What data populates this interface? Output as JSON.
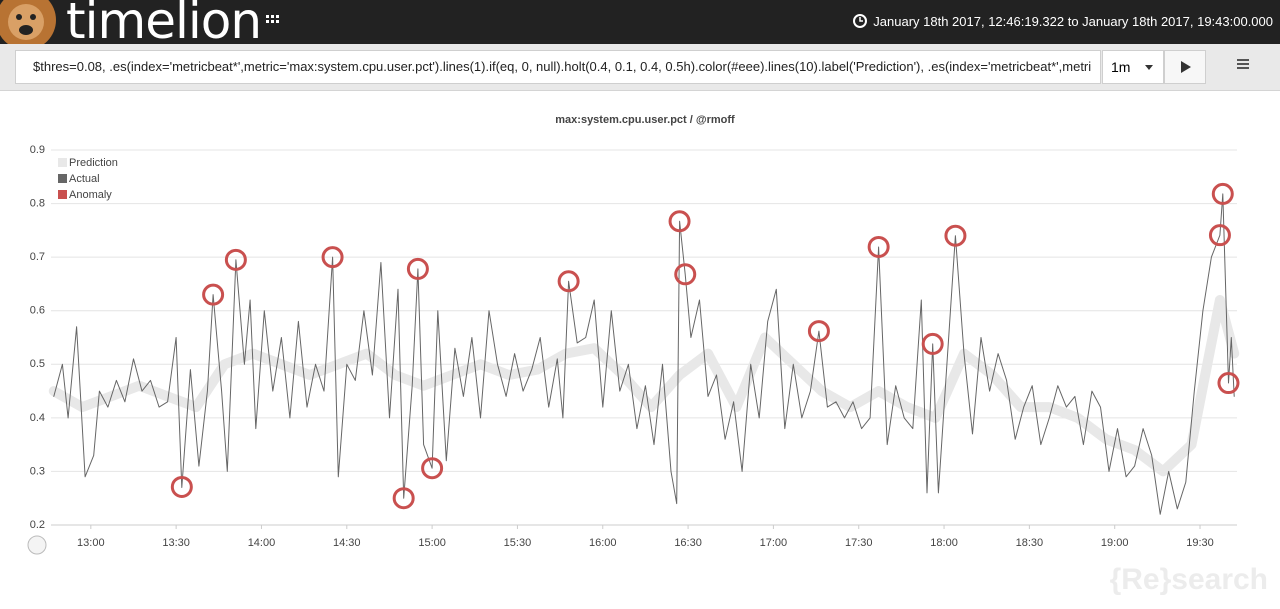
{
  "header": {
    "logo": "timelion",
    "time_range": "January 18th 2017, 12:46:19.322 to January 18th 2017, 19:43:00.000"
  },
  "query": {
    "expression": "$thres=0.08, .es(index='metricbeat*',metric='max:system.cpu.user.pct').lines(1).if(eq, 0, null).holt(0.4, 0.1, 0.4, 0.5h).color(#eee).lines(10).label('Prediction'), .es(index='metricbeat*',metri",
    "interval": "1m"
  },
  "watermark": "{Re}search",
  "chart_data": {
    "type": "line",
    "title": "max:system.cpu.user.pct / @rmoff",
    "xlim": [
      "12:46",
      "19:43"
    ],
    "xticks": [
      "13:00",
      "13:30",
      "14:00",
      "14:30",
      "15:00",
      "15:30",
      "16:00",
      "16:30",
      "17:00",
      "17:30",
      "18:00",
      "18:30",
      "19:00",
      "19:30"
    ],
    "ylim": [
      0.2,
      0.9
    ],
    "yticks": [
      0.2,
      0.3,
      0.4,
      0.5,
      0.6,
      0.7,
      0.8,
      0.9
    ],
    "grid": true,
    "legend": "top-left",
    "series": [
      {
        "name": "Prediction",
        "color": "#e8e8e8",
        "style": "thick",
        "x": [
          "12:47",
          "12:57",
          "13:07",
          "13:17",
          "13:27",
          "13:37",
          "13:47",
          "13:57",
          "14:07",
          "14:17",
          "14:27",
          "14:37",
          "14:47",
          "14:57",
          "15:07",
          "15:17",
          "15:27",
          "15:37",
          "15:47",
          "15:57",
          "16:07",
          "16:17",
          "16:27",
          "16:37",
          "16:47",
          "16:57",
          "17:07",
          "17:17",
          "17:27",
          "17:37",
          "17:47",
          "17:57",
          "18:07",
          "18:17",
          "18:27",
          "18:37",
          "18:47",
          "18:57",
          "19:07",
          "19:17",
          "19:27",
          "19:37",
          "19:42"
        ],
        "values": [
          0.45,
          0.42,
          0.44,
          0.46,
          0.44,
          0.42,
          0.5,
          0.52,
          0.5,
          0.48,
          0.5,
          0.52,
          0.48,
          0.46,
          0.48,
          0.5,
          0.48,
          0.49,
          0.52,
          0.53,
          0.48,
          0.42,
          0.48,
          0.52,
          0.42,
          0.55,
          0.5,
          0.45,
          0.42,
          0.45,
          0.42,
          0.4,
          0.52,
          0.48,
          0.42,
          0.42,
          0.4,
          0.36,
          0.34,
          0.3,
          0.35,
          0.62,
          0.52
        ]
      },
      {
        "name": "Actual",
        "color": "#666666",
        "style": "thin",
        "x": [
          "12:47",
          "12:50",
          "12:52",
          "12:55",
          "12:58",
          "13:01",
          "13:03",
          "13:06",
          "13:09",
          "13:12",
          "13:15",
          "13:18",
          "13:21",
          "13:24",
          "13:27",
          "13:30",
          "13:32",
          "13:35",
          "13:38",
          "13:41",
          "13:43",
          "13:46",
          "13:48",
          "13:51",
          "13:54",
          "13:56",
          "13:58",
          "14:01",
          "14:04",
          "14:07",
          "14:10",
          "14:13",
          "14:16",
          "14:19",
          "14:22",
          "14:25",
          "14:27",
          "14:30",
          "14:33",
          "14:36",
          "14:39",
          "14:42",
          "14:45",
          "14:48",
          "14:50",
          "14:53",
          "14:55",
          "14:57",
          "15:00",
          "15:02",
          "15:05",
          "15:08",
          "15:11",
          "15:14",
          "15:17",
          "15:20",
          "15:23",
          "15:26",
          "15:29",
          "15:32",
          "15:35",
          "15:38",
          "15:41",
          "15:44",
          "15:46",
          "15:48",
          "15:51",
          "15:54",
          "15:57",
          "16:00",
          "16:03",
          "16:06",
          "16:09",
          "16:12",
          "16:15",
          "16:18",
          "16:21",
          "16:24",
          "16:26",
          "16:27",
          "16:29",
          "16:31",
          "16:34",
          "16:37",
          "16:40",
          "16:43",
          "16:46",
          "16:49",
          "16:52",
          "16:55",
          "16:58",
          "17:01",
          "17:04",
          "17:07",
          "17:10",
          "17:13",
          "17:16",
          "17:19",
          "17:22",
          "17:25",
          "17:28",
          "17:31",
          "17:34",
          "17:37",
          "17:40",
          "17:43",
          "17:46",
          "17:49",
          "17:52",
          "17:54",
          "17:56",
          "17:58",
          "18:01",
          "18:04",
          "18:07",
          "18:10",
          "18:13",
          "18:16",
          "18:19",
          "18:22",
          "18:25",
          "18:28",
          "18:31",
          "18:34",
          "18:37",
          "18:40",
          "18:43",
          "18:46",
          "18:49",
          "18:52",
          "18:55",
          "18:58",
          "19:01",
          "19:04",
          "19:07",
          "19:10",
          "19:13",
          "19:16",
          "19:19",
          "19:22",
          "19:25",
          "19:28",
          "19:31",
          "19:34",
          "19:37",
          "19:38",
          "19:40",
          "19:41",
          "19:42"
        ],
        "values": [
          0.44,
          0.5,
          0.4,
          0.57,
          0.29,
          0.33,
          0.45,
          0.42,
          0.47,
          0.43,
          0.51,
          0.45,
          0.47,
          0.42,
          0.43,
          0.55,
          0.27,
          0.49,
          0.31,
          0.45,
          0.63,
          0.45,
          0.3,
          0.695,
          0.5,
          0.62,
          0.38,
          0.6,
          0.45,
          0.55,
          0.4,
          0.58,
          0.42,
          0.5,
          0.45,
          0.7,
          0.29,
          0.5,
          0.47,
          0.6,
          0.48,
          0.69,
          0.4,
          0.64,
          0.25,
          0.46,
          0.678,
          0.35,
          0.306,
          0.6,
          0.32,
          0.53,
          0.44,
          0.55,
          0.4,
          0.6,
          0.5,
          0.44,
          0.52,
          0.45,
          0.49,
          0.55,
          0.42,
          0.51,
          0.4,
          0.655,
          0.54,
          0.55,
          0.62,
          0.42,
          0.6,
          0.45,
          0.5,
          0.38,
          0.46,
          0.35,
          0.5,
          0.3,
          0.24,
          0.767,
          0.668,
          0.55,
          0.62,
          0.44,
          0.48,
          0.36,
          0.43,
          0.3,
          0.5,
          0.4,
          0.58,
          0.64,
          0.38,
          0.5,
          0.4,
          0.45,
          0.562,
          0.42,
          0.43,
          0.4,
          0.43,
          0.38,
          0.4,
          0.719,
          0.35,
          0.46,
          0.4,
          0.38,
          0.62,
          0.26,
          0.538,
          0.26,
          0.5,
          0.74,
          0.52,
          0.37,
          0.55,
          0.45,
          0.52,
          0.47,
          0.36,
          0.42,
          0.46,
          0.35,
          0.4,
          0.46,
          0.42,
          0.44,
          0.35,
          0.45,
          0.42,
          0.3,
          0.38,
          0.29,
          0.31,
          0.38,
          0.33,
          0.22,
          0.3,
          0.23,
          0.28,
          0.45,
          0.6,
          0.7,
          0.741,
          0.818,
          0.465,
          0.55,
          0.44
        ]
      },
      {
        "name": "Anomaly",
        "color": "#c9504f",
        "style": "points",
        "x": [
          "13:32",
          "13:43",
          "13:51",
          "14:25",
          "14:50",
          "14:55",
          "15:00",
          "15:48",
          "16:27",
          "16:29",
          "17:16",
          "17:37",
          "17:56",
          "18:04",
          "19:37",
          "19:38",
          "19:40"
        ],
        "values": [
          0.271,
          0.63,
          0.695,
          0.7,
          0.25,
          0.678,
          0.306,
          0.655,
          0.767,
          0.668,
          0.562,
          0.719,
          0.538,
          0.74,
          0.741,
          0.818,
          0.465
        ]
      }
    ]
  }
}
